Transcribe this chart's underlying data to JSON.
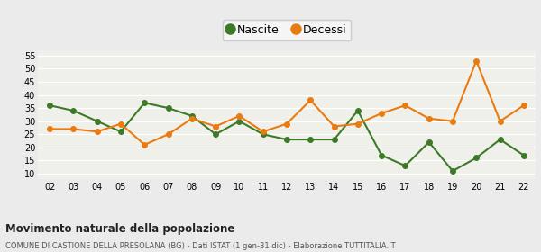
{
  "years": [
    "02",
    "03",
    "04",
    "05",
    "06",
    "07",
    "08",
    "09",
    "10",
    "11",
    "12",
    "13",
    "14",
    "15",
    "16",
    "17",
    "18",
    "19",
    "20",
    "21",
    "22"
  ],
  "nascite": [
    36,
    34,
    30,
    26,
    37,
    35,
    32,
    25,
    30,
    25,
    23,
    23,
    23,
    34,
    17,
    13,
    22,
    11,
    16,
    23,
    17
  ],
  "decessi": [
    27,
    27,
    26,
    29,
    21,
    25,
    31,
    28,
    32,
    26,
    29,
    38,
    28,
    29,
    33,
    36,
    31,
    30,
    53,
    30,
    36
  ],
  "nascite_color": "#3d7a27",
  "decessi_color": "#e87b12",
  "outer_background": "#ebebeb",
  "plot_background": "#f0f0eb",
  "grid_color": "#ffffff",
  "ylim": [
    8,
    57
  ],
  "yticks": [
    10,
    15,
    20,
    25,
    30,
    35,
    40,
    45,
    50,
    55
  ],
  "title": "Movimento naturale della popolazione",
  "subtitle": "COMUNE DI CASTIONE DELLA PRESOLANA (BG) - Dati ISTAT (1 gen-31 dic) - Elaborazione TUTTITALIA.IT",
  "legend_nascite": "Nascite",
  "legend_decessi": "Decessi",
  "marker_size": 4,
  "line_width": 1.5
}
